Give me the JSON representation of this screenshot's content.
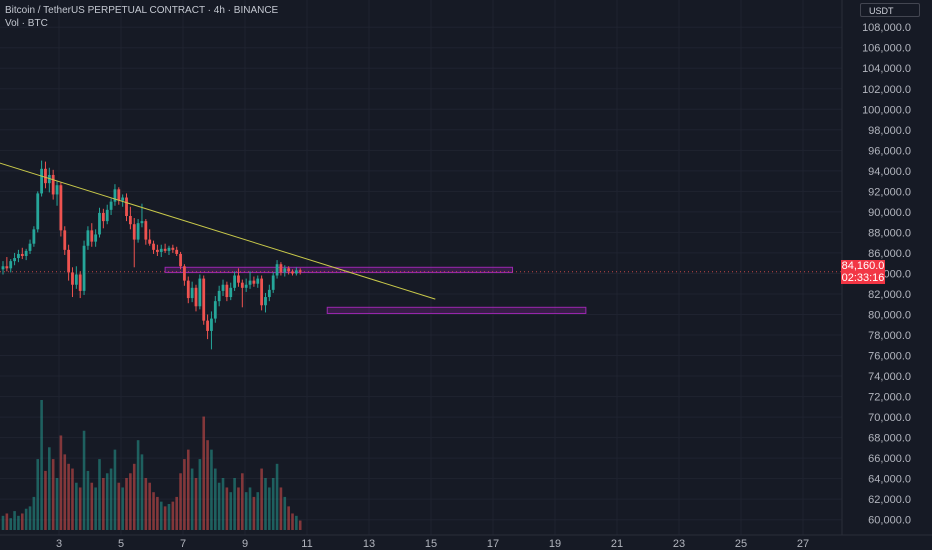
{
  "header": {
    "title": "Bitcoin / TetherUS PERPETUAL CONTRACT · 4h · BINANCE",
    "volume_label": "Vol · BTC"
  },
  "currency_button": "USDT",
  "colors": {
    "background": "#161a25",
    "up": "#26a69a",
    "down": "#ef5350",
    "trendline": "#c9c94a",
    "zone": "#9c27b0",
    "price_tag": "#f23645"
  },
  "chart_data": {
    "type": "candlestick",
    "y_axis": {
      "ticks": [
        "108,000.0",
        "106,000.0",
        "104,000.0",
        "102,000.0",
        "100,000.0",
        "98,000.0",
        "96,000.0",
        "94,000.0",
        "92,000.0",
        "90,000.0",
        "88,000.0",
        "86,000.0",
        "84,000.0",
        "82,000.0",
        "80,000.0",
        "78,000.0",
        "76,000.0",
        "74,000.0",
        "72,000.0",
        "70,000.0",
        "68,000.0",
        "66,000.0",
        "64,000.0",
        "62,000.0",
        "60,000.0"
      ],
      "range": [
        59000,
        108800
      ]
    },
    "x_axis": {
      "ticks": [
        "3",
        "5",
        "7",
        "9",
        "11",
        "13",
        "15",
        "17",
        "19",
        "21",
        "23",
        "25",
        "27"
      ]
    },
    "last_price": "84,160.0",
    "countdown": "02:33:16",
    "candles": [
      {
        "o": 84400,
        "h": 85200,
        "l": 83900,
        "c": 84700
      },
      {
        "o": 84700,
        "h": 85600,
        "l": 84200,
        "c": 84500
      },
      {
        "o": 84500,
        "h": 85400,
        "l": 84100,
        "c": 85200
      },
      {
        "o": 85200,
        "h": 86000,
        "l": 84800,
        "c": 85500
      },
      {
        "o": 85500,
        "h": 86300,
        "l": 85100,
        "c": 85900
      },
      {
        "o": 85900,
        "h": 86500,
        "l": 85400,
        "c": 85700
      },
      {
        "o": 85700,
        "h": 86400,
        "l": 85300,
        "c": 86200
      },
      {
        "o": 86200,
        "h": 87300,
        "l": 85900,
        "c": 86900
      },
      {
        "o": 86900,
        "h": 88600,
        "l": 86600,
        "c": 88300
      },
      {
        "o": 88300,
        "h": 92000,
        "l": 88000,
        "c": 91800
      },
      {
        "o": 91800,
        "h": 95000,
        "l": 91500,
        "c": 94200
      },
      {
        "o": 94200,
        "h": 94900,
        "l": 92300,
        "c": 92800
      },
      {
        "o": 92800,
        "h": 94300,
        "l": 91900,
        "c": 93600
      },
      {
        "o": 93600,
        "h": 94100,
        "l": 91200,
        "c": 91700
      },
      {
        "o": 91700,
        "h": 93000,
        "l": 90600,
        "c": 92600
      },
      {
        "o": 92600,
        "h": 92900,
        "l": 87600,
        "c": 88200
      },
      {
        "o": 88200,
        "h": 88600,
        "l": 85800,
        "c": 86300
      },
      {
        "o": 86300,
        "h": 86800,
        "l": 83300,
        "c": 84100
      },
      {
        "o": 84100,
        "h": 84600,
        "l": 81700,
        "c": 82900
      },
      {
        "o": 82900,
        "h": 84700,
        "l": 82500,
        "c": 83900
      },
      {
        "o": 83900,
        "h": 84200,
        "l": 81600,
        "c": 82300
      },
      {
        "o": 82300,
        "h": 87200,
        "l": 81900,
        "c": 86700
      },
      {
        "o": 86700,
        "h": 88600,
        "l": 86300,
        "c": 88200
      },
      {
        "o": 88200,
        "h": 88900,
        "l": 86600,
        "c": 87100
      },
      {
        "o": 87100,
        "h": 88300,
        "l": 86600,
        "c": 87800
      },
      {
        "o": 87800,
        "h": 90400,
        "l": 87500,
        "c": 89900
      },
      {
        "o": 89900,
        "h": 90300,
        "l": 88400,
        "c": 89100
      },
      {
        "o": 89100,
        "h": 90700,
        "l": 88800,
        "c": 90200
      },
      {
        "o": 90200,
        "h": 91300,
        "l": 89700,
        "c": 91000
      },
      {
        "o": 91000,
        "h": 92700,
        "l": 90600,
        "c": 92200
      },
      {
        "o": 92200,
        "h": 92400,
        "l": 90700,
        "c": 91100
      },
      {
        "o": 91100,
        "h": 91700,
        "l": 90500,
        "c": 91400
      },
      {
        "o": 91400,
        "h": 91800,
        "l": 89100,
        "c": 89600
      },
      {
        "o": 89600,
        "h": 90500,
        "l": 88300,
        "c": 88800
      },
      {
        "o": 88800,
        "h": 89400,
        "l": 84600,
        "c": 87300
      },
      {
        "o": 87300,
        "h": 89300,
        "l": 87000,
        "c": 88900
      },
      {
        "o": 88900,
        "h": 90800,
        "l": 88500,
        "c": 89100
      },
      {
        "o": 89100,
        "h": 89300,
        "l": 86800,
        "c": 87300
      },
      {
        "o": 87300,
        "h": 88300,
        "l": 86700,
        "c": 86900
      },
      {
        "o": 86900,
        "h": 87200,
        "l": 85900,
        "c": 86300
      },
      {
        "o": 86300,
        "h": 86800,
        "l": 85700,
        "c": 86100
      },
      {
        "o": 86100,
        "h": 86800,
        "l": 85600,
        "c": 86400
      },
      {
        "o": 86400,
        "h": 86900,
        "l": 86000,
        "c": 86200
      },
      {
        "o": 86200,
        "h": 86700,
        "l": 85800,
        "c": 86500
      },
      {
        "o": 86500,
        "h": 86800,
        "l": 86000,
        "c": 86300
      },
      {
        "o": 86300,
        "h": 86600,
        "l": 85700,
        "c": 85900
      },
      {
        "o": 85900,
        "h": 86100,
        "l": 84400,
        "c": 84700
      },
      {
        "o": 84700,
        "h": 84900,
        "l": 82800,
        "c": 83300
      },
      {
        "o": 83300,
        "h": 83700,
        "l": 81100,
        "c": 81600
      },
      {
        "o": 81600,
        "h": 83200,
        "l": 81200,
        "c": 82600
      },
      {
        "o": 82600,
        "h": 82900,
        "l": 80300,
        "c": 80800
      },
      {
        "o": 80800,
        "h": 83900,
        "l": 80500,
        "c": 83500
      },
      {
        "o": 83500,
        "h": 83800,
        "l": 79000,
        "c": 79400
      },
      {
        "o": 79400,
        "h": 80000,
        "l": 77600,
        "c": 78400
      },
      {
        "o": 78400,
        "h": 80300,
        "l": 76600,
        "c": 79600
      },
      {
        "o": 79600,
        "h": 81800,
        "l": 79200,
        "c": 81300
      },
      {
        "o": 81300,
        "h": 82800,
        "l": 80800,
        "c": 82300
      },
      {
        "o": 82300,
        "h": 83400,
        "l": 81800,
        "c": 82900
      },
      {
        "o": 82900,
        "h": 83200,
        "l": 81300,
        "c": 81700
      },
      {
        "o": 81700,
        "h": 83100,
        "l": 81400,
        "c": 82600
      },
      {
        "o": 82600,
        "h": 84200,
        "l": 82300,
        "c": 83800
      },
      {
        "o": 83800,
        "h": 84500,
        "l": 82700,
        "c": 83100
      },
      {
        "o": 83100,
        "h": 83400,
        "l": 80700,
        "c": 82600
      },
      {
        "o": 82600,
        "h": 83500,
        "l": 82200,
        "c": 82900
      },
      {
        "o": 82900,
        "h": 84200,
        "l": 82500,
        "c": 83300
      },
      {
        "o": 83300,
        "h": 83700,
        "l": 82700,
        "c": 83000
      },
      {
        "o": 83000,
        "h": 83800,
        "l": 82600,
        "c": 83500
      },
      {
        "o": 83500,
        "h": 83800,
        "l": 80400,
        "c": 80900
      },
      {
        "o": 80900,
        "h": 82100,
        "l": 80200,
        "c": 81700
      },
      {
        "o": 81700,
        "h": 82900,
        "l": 81300,
        "c": 82400
      },
      {
        "o": 82400,
        "h": 84100,
        "l": 82100,
        "c": 83800
      },
      {
        "o": 83800,
        "h": 85300,
        "l": 83500,
        "c": 84900
      },
      {
        "o": 84900,
        "h": 85100,
        "l": 83800,
        "c": 84100
      },
      {
        "o": 84100,
        "h": 84800,
        "l": 83700,
        "c": 84500
      },
      {
        "o": 84500,
        "h": 84700,
        "l": 83900,
        "c": 84200
      },
      {
        "o": 84200,
        "h": 84400,
        "l": 83800,
        "c": 84000
      },
      {
        "o": 84000,
        "h": 84600,
        "l": 83800,
        "c": 84300
      },
      {
        "o": 84300,
        "h": 84500,
        "l": 83900,
        "c": 84160
      }
    ],
    "volumes": [
      6,
      7,
      5,
      8,
      6,
      7,
      9,
      10,
      14,
      30,
      55,
      25,
      35,
      30,
      22,
      40,
      32,
      28,
      26,
      20,
      18,
      42,
      25,
      20,
      18,
      30,
      22,
      24,
      26,
      34,
      20,
      18,
      22,
      24,
      28,
      38,
      32,
      22,
      20,
      16,
      14,
      12,
      10,
      11,
      12,
      14,
      24,
      30,
      34,
      26,
      22,
      30,
      48,
      38,
      34,
      26,
      20,
      22,
      18,
      16,
      22,
      18,
      24,
      16,
      18,
      14,
      16,
      26,
      22,
      18,
      22,
      28,
      18,
      14,
      10,
      7,
      6,
      4
    ],
    "annotations": {
      "trendline": [
        {
          "candle": -8,
          "price": 95600
        },
        {
          "candle": 112,
          "price": 81500
        }
      ],
      "resistance_zone": {
        "from_candle": 42,
        "to_candle": 132,
        "low": 84100,
        "high": 84600
      },
      "support_zone": {
        "from_candle": 84,
        "to_candle": 151,
        "low": 80100,
        "high": 80700
      }
    }
  }
}
